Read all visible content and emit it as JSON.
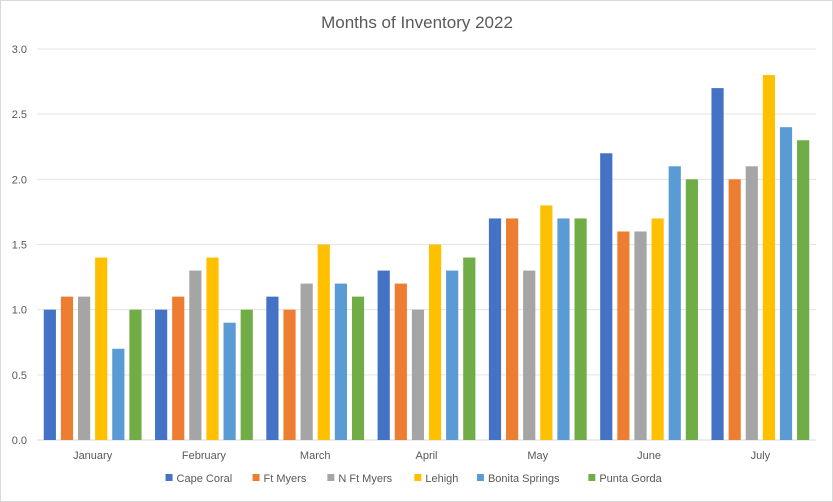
{
  "chart_data": {
    "type": "bar",
    "title": "Months of Inventory 2022",
    "xlabel": "",
    "ylabel": "",
    "ylim": [
      0,
      3.0
    ],
    "yticks": [
      "0.0",
      "0.5",
      "1.0",
      "1.5",
      "2.0",
      "2.5",
      "3.0"
    ],
    "grid": true,
    "legend_position": "bottom",
    "categories": [
      "January",
      "February",
      "March",
      "April",
      "May",
      "June",
      "July"
    ],
    "series": [
      {
        "name": "Cape Coral",
        "color": "#4472c4",
        "values": [
          1.0,
          1.0,
          1.1,
          1.3,
          1.7,
          2.2,
          2.7
        ]
      },
      {
        "name": "Ft Myers",
        "color": "#ed7d31",
        "values": [
          1.1,
          1.1,
          1.0,
          1.2,
          1.7,
          1.6,
          2.0
        ]
      },
      {
        "name": "N Ft Myers",
        "color": "#a5a5a5",
        "values": [
          1.1,
          1.3,
          1.2,
          1.0,
          1.3,
          1.6,
          2.1
        ]
      },
      {
        "name": "Lehigh",
        "color": "#ffc000",
        "values": [
          1.4,
          1.4,
          1.5,
          1.5,
          1.8,
          1.7,
          2.8
        ]
      },
      {
        "name": "Bonita Springs",
        "color": "#5b9bd5",
        "values": [
          0.7,
          0.9,
          1.2,
          1.3,
          1.7,
          2.1,
          2.4
        ]
      },
      {
        "name": "Punta Gorda",
        "color": "#70ad47",
        "values": [
          1.0,
          1.0,
          1.1,
          1.4,
          1.7,
          2.0,
          2.3
        ]
      }
    ]
  }
}
